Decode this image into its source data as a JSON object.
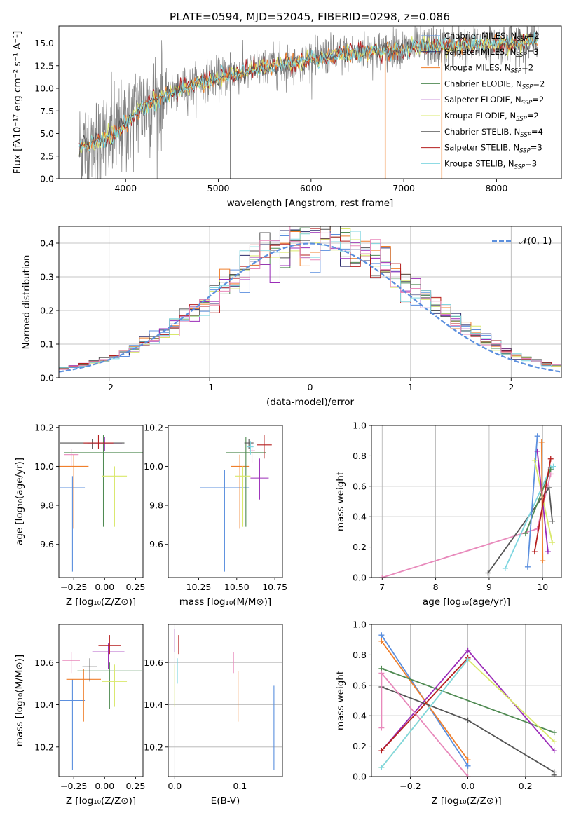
{
  "title": "PLATE=0594, MJD=52045, FIBERID=0298, z=0.086",
  "colors": {
    "Chabrier MILES": "#5b8fde",
    "Salpeter MILES": "#2b2b6b",
    "Kroupa MILES": "#f07f2b",
    "Chabrier ELODIE": "#4f8a52",
    "Salpeter ELODIE": "#9b2cb8",
    "Kroupa ELODIE": "#d9e86a",
    "Chabrier STELIB": "#555555",
    "Salpeter STELIB": "#b51f1f",
    "Kroupa STELIB": "#7fd6e0",
    "Extra": "#e889bb",
    "Data": "#808080"
  },
  "chart_data": [
    {
      "type": "line",
      "name": "spectrum",
      "xlabel": "wavelength [Angstrom, rest frame]",
      "ylabel": "Flux [fλ10⁻¹⁷ erg cm⁻² s⁻¹ A⁻¹]",
      "xlim": [
        3280,
        8700
      ],
      "ylim": [
        0,
        16.9
      ],
      "xticks": [
        4000,
        5000,
        6000,
        7000,
        8000
      ],
      "yticks": [
        0.0,
        2.5,
        5.0,
        7.5,
        10.0,
        12.5,
        15.0
      ],
      "legend": [
        {
          "label": "Chabrier MILES, N",
          "sub": "SSP",
          "val": "=2",
          "series": "Chabrier MILES"
        },
        {
          "label": "Salpeter MILES, N",
          "sub": "SSP",
          "val": "=3",
          "series": "Salpeter MILES"
        },
        {
          "label": "Kroupa MILES, N",
          "sub": "SSP",
          "val": "=2",
          "series": "Kroupa MILES"
        },
        {
          "label": "Chabrier ELODIE, N",
          "sub": "SSP",
          "val": "=2",
          "series": "Chabrier ELODIE"
        },
        {
          "label": "Salpeter ELODIE, N",
          "sub": "SSP",
          "val": "=2",
          "series": "Salpeter ELODIE"
        },
        {
          "label": "Kroupa ELODIE, N",
          "sub": "SSP",
          "val": "=2",
          "series": "Kroupa ELODIE"
        },
        {
          "label": "Chabrier STELIB, N",
          "sub": "SSP",
          "val": "=4",
          "series": "Chabrier STELIB"
        },
        {
          "label": "Salpeter STELIB, N",
          "sub": "SSP",
          "val": "=3",
          "series": "Salpeter STELIB"
        },
        {
          "label": "Kroupa STELIB, N",
          "sub": "SSP",
          "val": "=3",
          "series": "Kroupa STELIB"
        }
      ],
      "legend_position": "right",
      "continuum": {
        "x": [
          3500,
          3700,
          3900,
          4000,
          4100,
          4200,
          4400,
          4600,
          4800,
          5000,
          5200,
          5500,
          5800,
          6000,
          6200,
          6400,
          6600,
          6800,
          7000,
          7200,
          7400,
          7600,
          7800,
          8000,
          8200,
          8400
        ],
        "y": [
          3.5,
          4.2,
          5.0,
          6.0,
          7.4,
          8.0,
          9.1,
          9.9,
          10.6,
          11.2,
          11.6,
          12.3,
          12.8,
          13.2,
          13.6,
          13.8,
          14.0,
          14.1,
          14.3,
          14.5,
          14.6,
          14.7,
          14.8,
          14.9,
          15.0,
          15.1
        ]
      },
      "data_note_features": [
        5130,
        6800,
        7410
      ]
    },
    {
      "type": "histogram",
      "name": "residuals",
      "xlabel": "(data-model)/error",
      "ylabel": "Normed distribution",
      "xlim": [
        -2.5,
        2.5
      ],
      "ylim": [
        0,
        0.45
      ],
      "xticks": [
        -2,
        -1,
        0,
        1,
        2
      ],
      "yticks": [
        0.0,
        0.1,
        0.2,
        0.3,
        0.4
      ],
      "reference_label": "𝒩(0, 1)",
      "bins": 50,
      "grid": true,
      "legend_position": "top-right"
    },
    {
      "type": "scatter",
      "name": "age_vs_Z",
      "xlabel": "Z [log₁₀(Z/Z⊙)]",
      "ylabel": "age  [log₁₀(age/yr)]",
      "xlim": [
        -0.37,
        0.31
      ],
      "ylim": [
        9.43,
        10.21
      ],
      "xticks": [
        -0.25,
        0.0,
        0.25
      ],
      "xticklabels": [
        "−0.25",
        "0.00",
        "0.25"
      ],
      "yticks": [
        9.6,
        9.8,
        10.0,
        10.2
      ],
      "points": [
        {
          "series": "Chabrier MILES",
          "x": -0.26,
          "xerr": 0.1,
          "y": 9.89,
          "ylo": 9.46,
          "yhi": 9.95
        },
        {
          "series": "Kroupa MILES",
          "x": -0.25,
          "xerr": 0.12,
          "y": 10.0,
          "ylo": 9.68,
          "yhi": 10.06
        },
        {
          "series": "Chabrier ELODIE",
          "x": -0.01,
          "xerr": 0.32,
          "y": 10.07,
          "ylo": 9.69,
          "yhi": 10.16
        },
        {
          "series": "Salpeter ELODIE",
          "x": -0.0,
          "xerr": 0.14,
          "y": 10.12,
          "ylo": 10.08,
          "yhi": 10.15
        },
        {
          "series": "Kroupa ELODIE",
          "x": 0.08,
          "xerr": 0.1,
          "y": 9.95,
          "ylo": 9.69,
          "yhi": 10.0
        },
        {
          "series": "Chabrier STELIB",
          "x": -0.1,
          "xerr": 0.26,
          "y": 10.12,
          "ylo": 10.09,
          "yhi": 10.14
        },
        {
          "series": "Salpeter STELIB",
          "x": -0.05,
          "xerr": 0.12,
          "y": 10.12,
          "ylo": 10.09,
          "yhi": 10.16
        },
        {
          "series": "Extra",
          "x": -0.27,
          "xerr": 0.06,
          "y": 10.06,
          "ylo": 10.0,
          "yhi": 10.09
        }
      ]
    },
    {
      "type": "scatter",
      "name": "age_vs_mass",
      "xlabel": "mass [log₁₀(M/M⊙)]",
      "ylabel": "",
      "xlim": [
        10.05,
        10.8
      ],
      "ylim": [
        9.43,
        10.21
      ],
      "xticks": [
        10.25,
        10.5,
        10.75
      ],
      "xticklabels": [
        "10.25",
        "10.50",
        "10.75"
      ],
      "yticks": [
        9.6,
        9.8,
        10.0,
        10.2
      ],
      "points": [
        {
          "series": "Chabrier MILES",
          "x": 10.42,
          "xerr": 0.16,
          "y": 9.89,
          "ylo": 9.46,
          "yhi": 9.98
        },
        {
          "series": "Kroupa MILES",
          "x": 10.52,
          "xerr": 0.06,
          "y": 10.0,
          "ylo": 9.68,
          "yhi": 10.06
        },
        {
          "series": "Chabrier ELODIE",
          "x": 10.56,
          "xerr": 0.13,
          "y": 10.07,
          "ylo": 9.69,
          "yhi": 10.15
        },
        {
          "series": "Salpeter ELODIE",
          "x": 10.65,
          "xerr": 0.06,
          "y": 9.94,
          "ylo": 9.83,
          "yhi": 10.04
        },
        {
          "series": "Kroupa ELODIE",
          "x": 10.54,
          "xerr": 0.05,
          "y": 9.95,
          "ylo": 9.69,
          "yhi": 10.0
        },
        {
          "series": "Chabrier STELIB",
          "x": 10.58,
          "xerr": 0.03,
          "y": 10.12,
          "ylo": 10.09,
          "yhi": 10.14
        },
        {
          "series": "Salpeter STELIB",
          "x": 10.68,
          "xerr": 0.05,
          "y": 10.11,
          "ylo": 10.04,
          "yhi": 10.16
        },
        {
          "series": "Extra",
          "x": 10.6,
          "xerr": 0.02,
          "y": 10.08,
          "ylo": 10.02,
          "yhi": 10.12
        },
        {
          "series": "Kroupa STELIB",
          "x": 10.59,
          "xerr": 0.02,
          "y": 10.1,
          "ylo": 10.06,
          "yhi": 10.13
        }
      ]
    },
    {
      "type": "line",
      "name": "mass_weight_vs_age",
      "xlabel": "age  [log₁₀(age/yr)]",
      "ylabel": "mass weight",
      "xlim": [
        6.8,
        10.35
      ],
      "ylim": [
        0,
        1.0
      ],
      "xticks": [
        7,
        8,
        9,
        10
      ],
      "yticks": [
        0.0,
        0.2,
        0.4,
        0.6,
        0.8,
        1.0
      ],
      "grid": true,
      "series": [
        {
          "name": "Extra",
          "x": [
            7.0,
            9.9,
            10.15
          ],
          "y": [
            0.0,
            0.32,
            0.68
          ]
        },
        {
          "name": "Chabrier STELIB",
          "x": [
            8.98,
            10.12,
            10.18
          ],
          "y": [
            0.03,
            0.59,
            0.37
          ]
        },
        {
          "name": "Kroupa STELIB",
          "x": [
            9.3,
            10.15,
            10.2
          ],
          "y": [
            0.06,
            0.72,
            0.73
          ]
        },
        {
          "name": "Chabrier ELODIE",
          "x": [
            9.68,
            10.15
          ],
          "y": [
            0.29,
            0.71
          ]
        },
        {
          "name": "Chabrier MILES",
          "x": [
            9.72,
            9.9
          ],
          "y": [
            0.07,
            0.93
          ]
        },
        {
          "name": "Kroupa ELODIE",
          "x": [
            9.85,
            10.18
          ],
          "y": [
            0.77,
            0.23
          ]
        },
        {
          "name": "Salpeter ELODIE",
          "x": [
            9.9,
            10.1
          ],
          "y": [
            0.83,
            0.17
          ]
        },
        {
          "name": "Kroupa MILES",
          "x": [
            9.98,
            10.0
          ],
          "y": [
            0.89,
            0.11
          ]
        },
        {
          "name": "Salpeter STELIB",
          "x": [
            9.85,
            10.15
          ],
          "y": [
            0.17,
            0.78
          ]
        }
      ]
    },
    {
      "type": "scatter",
      "name": "mass_vs_Z",
      "xlabel": "Z [log₁₀(Z/Z⊙)]",
      "ylabel": "mass [log₁₀(M/M⊙)]",
      "xlim": [
        -0.37,
        0.31
      ],
      "ylim": [
        10.06,
        10.78
      ],
      "xticks": [
        -0.25,
        0.0,
        0.25
      ],
      "xticklabels": [
        "−0.25",
        "0.00",
        "0.25"
      ],
      "yticks": [
        10.2,
        10.4,
        10.6
      ],
      "points": [
        {
          "series": "Chabrier MILES",
          "x": -0.26,
          "xerr": 0.1,
          "y": 10.42,
          "ylo": 10.09,
          "yhi": 10.52
        },
        {
          "series": "Kroupa MILES",
          "x": -0.17,
          "xerr": 0.14,
          "y": 10.52,
          "ylo": 10.32,
          "yhi": 10.57
        },
        {
          "series": "Chabrier ELODIE",
          "x": 0.04,
          "xerr": 0.26,
          "y": 10.56,
          "ylo": 10.38,
          "yhi": 10.6
        },
        {
          "series": "Salpeter ELODIE",
          "x": 0.03,
          "xerr": 0.13,
          "y": 10.65,
          "ylo": 10.57,
          "yhi": 10.69
        },
        {
          "series": "Kroupa ELODIE",
          "x": 0.08,
          "xerr": 0.1,
          "y": 10.51,
          "ylo": 10.39,
          "yhi": 10.59
        },
        {
          "series": "Chabrier STELIB",
          "x": -0.12,
          "xerr": 0.06,
          "y": 10.58,
          "ylo": 10.51,
          "yhi": 10.62
        },
        {
          "series": "Salpeter STELIB",
          "x": 0.04,
          "xerr": 0.09,
          "y": 10.68,
          "ylo": 10.64,
          "yhi": 10.73
        },
        {
          "series": "Extra",
          "x": -0.27,
          "xerr": 0.07,
          "y": 10.61,
          "ylo": 10.55,
          "yhi": 10.65
        }
      ]
    },
    {
      "type": "scatter",
      "name": "mass_vs_EBV",
      "xlabel": "E(B-V)",
      "ylabel": "",
      "xlim": [
        -0.01,
        0.165
      ],
      "ylim": [
        10.06,
        10.78
      ],
      "xticks": [
        0.0,
        0.1
      ],
      "xticklabels": [
        "0.0",
        "0.1"
      ],
      "yticks": [
        10.2,
        10.4,
        10.6
      ],
      "grid": true,
      "points": [
        {
          "series": "Chabrier MILES",
          "x": 0.152,
          "y": 10.42,
          "ylo": 10.09,
          "yhi": 10.49
        },
        {
          "series": "Kroupa MILES",
          "x": 0.097,
          "y": 10.5,
          "ylo": 10.32,
          "yhi": 10.56
        },
        {
          "series": "Extra",
          "x": 0.09,
          "y": 10.6,
          "ylo": 10.55,
          "yhi": 10.65
        },
        {
          "series": "Kroupa ELODIE",
          "x": 0.0,
          "y": 10.51,
          "ylo": 10.39,
          "yhi": 10.59
        },
        {
          "series": "Salpeter ELODIE",
          "x": 0.0,
          "y": 10.7,
          "ylo": 10.65,
          "yhi": 10.76
        },
        {
          "series": "Salpeter STELIB",
          "x": 0.006,
          "y": 10.68,
          "ylo": 10.64,
          "yhi": 10.73
        },
        {
          "series": "Kroupa STELIB",
          "x": 0.004,
          "y": 10.58,
          "ylo": 10.5,
          "yhi": 10.62
        }
      ]
    },
    {
      "type": "line",
      "name": "mass_weight_vs_Z",
      "xlabel": "Z [log₁₀(Z/Z⊙)]",
      "ylabel": "mass weight",
      "xlim": [
        -0.335,
        0.325
      ],
      "ylim": [
        0,
        1.0
      ],
      "xticks": [
        -0.2,
        0.0,
        0.2
      ],
      "xticklabels": [
        "−0.2",
        "0.0",
        "0.2"
      ],
      "yticks": [
        0.0,
        0.2,
        0.4,
        0.6,
        0.8,
        1.0
      ],
      "grid": true,
      "series": [
        {
          "name": "Chabrier MILES",
          "x": [
            -0.3,
            0.0
          ],
          "y": [
            0.93,
            0.07
          ]
        },
        {
          "name": "Kroupa MILES",
          "x": [
            -0.3,
            0.0
          ],
          "y": [
            0.89,
            0.11
          ]
        },
        {
          "name": "Chabrier ELODIE",
          "x": [
            -0.3,
            0.3
          ],
          "y": [
            0.71,
            0.29
          ]
        },
        {
          "name": "Salpeter ELODIE",
          "x": [
            -0.3,
            0.0,
            0.3
          ],
          "y": [
            0.17,
            0.83,
            0.17
          ]
        },
        {
          "name": "Kroupa ELODIE",
          "x": [
            -0.3,
            0.0,
            0.3
          ],
          "y": [
            0.06,
            0.77,
            0.23
          ]
        },
        {
          "name": "Chabrier STELIB",
          "x": [
            -0.3,
            0.0,
            0.3,
            0.3
          ],
          "y": [
            0.59,
            0.37,
            0.03,
            0.01
          ]
        },
        {
          "name": "Salpeter STELIB",
          "x": [
            -0.3,
            0.0
          ],
          "y": [
            0.17,
            0.78
          ]
        },
        {
          "name": "Kroupa STELIB",
          "x": [
            -0.3,
            0.0
          ],
          "y": [
            0.06,
            0.77
          ]
        },
        {
          "name": "Extra",
          "x": [
            -0.3,
            -0.3,
            0.0
          ],
          "y": [
            0.32,
            0.68,
            0.0
          ]
        }
      ]
    }
  ]
}
